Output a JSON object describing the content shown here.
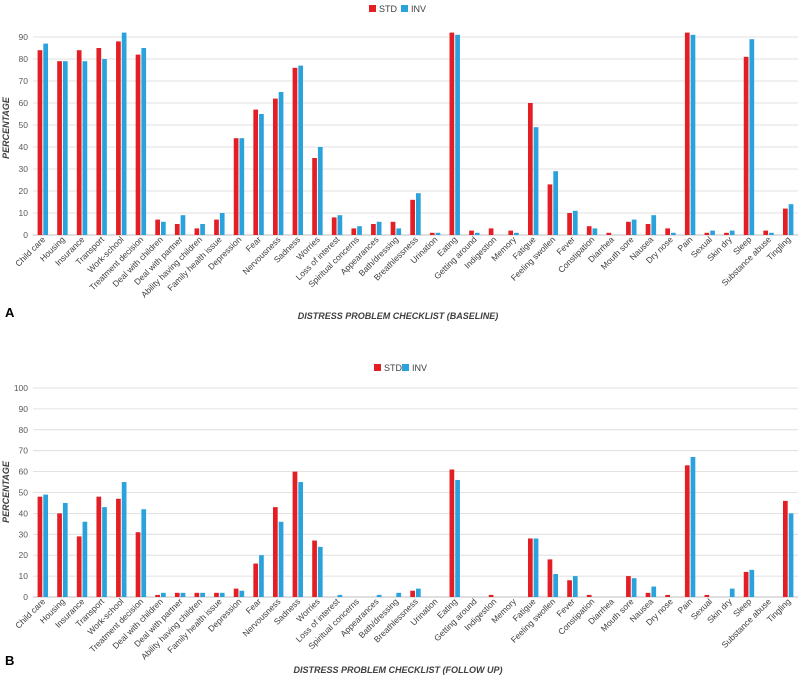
{
  "colors": {
    "STD": "#e31e24",
    "INV": "#2aa3dc"
  },
  "chart_data": [
    {
      "type": "bar",
      "panel": "A",
      "xlabel": "DISTRESS PROBLEM CHECKLIST (BASELINE)",
      "ylabel": "PERCENTAGE",
      "ylim": [
        0,
        100
      ],
      "yticks": [
        0,
        10,
        20,
        30,
        40,
        50,
        60,
        70,
        80,
        90
      ],
      "legend": [
        "STD",
        "INV"
      ],
      "legend_position": "top-center",
      "categories": [
        "Child care",
        "Housing",
        "Insurance",
        "Transport",
        "Work-school",
        "Treatment decision",
        "Deal with children",
        "Deal with partner",
        "Ability having children",
        "Family health issue",
        "Depression",
        "Fear",
        "Nervousness",
        "Sadness",
        "Worries",
        "Loss of interest",
        "Spiritual concerns",
        "Appearances",
        "Bath/dressing",
        "Breathlessness",
        "Urination",
        "Eating",
        "Getting around",
        "Indigestion",
        "Memory",
        "Fatigue",
        "Feeling swollen",
        "Fever",
        "Constipation",
        "Diarrhea",
        "Mouth sore",
        "Nausea",
        "Dry nose",
        "Pain",
        "Sexual",
        "Skin dry",
        "Sleep",
        "Substance abuse",
        "Tingling"
      ],
      "series": [
        {
          "name": "STD",
          "values": [
            84,
            79,
            84,
            85,
            88,
            82,
            7,
            5,
            3,
            7,
            44,
            57,
            62,
            76,
            35,
            8,
            3,
            5,
            6,
            16,
            1,
            92,
            2,
            3,
            2,
            60,
            23,
            10,
            4,
            1,
            6,
            5,
            3,
            92,
            1,
            1,
            81,
            2,
            12
          ]
        },
        {
          "name": "INV",
          "values": [
            87,
            79,
            79,
            80,
            92,
            85,
            6,
            9,
            5,
            10,
            44,
            55,
            65,
            77,
            40,
            9,
            4,
            6,
            3,
            19,
            1,
            91,
            1,
            0,
            1,
            49,
            29,
            11,
            3,
            0,
            7,
            9,
            1,
            91,
            2,
            2,
            89,
            1,
            14
          ]
        }
      ]
    },
    {
      "type": "bar",
      "panel": "B",
      "xlabel": "DISTRESS PROBLEM CHECKLIST (FOLLOW UP)",
      "ylabel": "PERCENTAGE",
      "ylim": [
        0,
        100
      ],
      "yticks": [
        0,
        10,
        20,
        30,
        40,
        50,
        60,
        70,
        80,
        90,
        100
      ],
      "legend": [
        "STD",
        "INV"
      ],
      "legend_position": "top-center",
      "categories": [
        "Child care",
        "Housing",
        "Insurance",
        "Transport",
        "Work-school",
        "Treatment decision",
        "Deal with children",
        "Deal with partner",
        "Ability having children",
        "Family health issue",
        "Depression",
        "Fear",
        "Nervousness",
        "Sadness",
        "Worries",
        "Loss of interest",
        "Spiritual concerns",
        "Appearances",
        "Bath/dressing",
        "Breathlessness",
        "Urination",
        "Eating",
        "Getting around",
        "Indigestion",
        "Memory",
        "Fatigue",
        "Feeling swollen",
        "Fever",
        "Constipation",
        "Diarrhea",
        "Mouth sore",
        "Nausea",
        "Dry nose",
        "Pain",
        "Sexual",
        "Skin dry",
        "Sleep",
        "Substance abuse",
        "Tingling"
      ],
      "series": [
        {
          "name": "STD",
          "values": [
            48,
            40,
            29,
            48,
            47,
            31,
            1,
            2,
            2,
            2,
            4,
            16,
            43,
            60,
            27,
            0,
            0,
            0,
            0,
            3,
            0,
            61,
            0,
            1,
            0,
            28,
            18,
            8,
            1,
            0,
            10,
            2,
            1,
            63,
            1,
            0,
            12,
            0,
            46
          ]
        },
        {
          "name": "INV",
          "values": [
            49,
            45,
            36,
            43,
            55,
            42,
            2,
            2,
            2,
            2,
            3,
            20,
            36,
            55,
            24,
            1,
            0,
            1,
            2,
            4,
            0,
            56,
            0,
            0,
            0,
            28,
            11,
            10,
            0,
            0,
            9,
            5,
            0,
            67,
            0,
            4,
            13,
            0,
            40
          ]
        }
      ]
    }
  ]
}
